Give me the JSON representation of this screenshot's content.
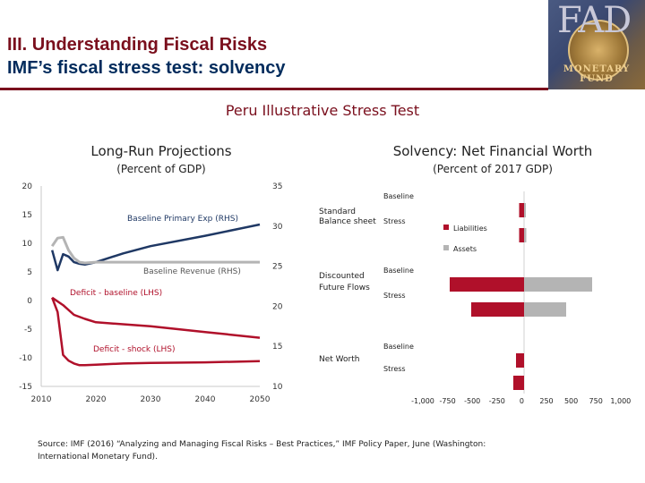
{
  "header": {
    "title": "III. Understanding Fiscal Risks",
    "subtitle": "IMF’s fiscal stress test: solvency",
    "logo_text": "FAD",
    "logo_band": "MONETARY FUND"
  },
  "main_title": "Peru Illustrative Stress Test",
  "left_chart": {
    "title": "Long-Run Projections",
    "subtitle": "(Percent of GDP)"
  },
  "right_chart": {
    "title": "Solvency: Net Financial Worth",
    "subtitle": "(Percent of 2017 GDP)"
  },
  "source": "Source: IMF (2016) “Analyzing and Managing Fiscal Risks – Best Practices,” IMF Policy Paper, June (Washington: International Monetary Fund).",
  "colors": {
    "title_red": "#7a0f1d",
    "title_blue": "#002b5c",
    "deficit_red": "#b0102a",
    "navy": "#1f3864",
    "gray": "#b4b4b4"
  },
  "chart_data": [
    {
      "type": "line",
      "x_ticks": [
        "2010",
        "2020",
        "2030",
        "2040",
        "2050"
      ],
      "xlim": [
        2010,
        2050
      ],
      "ylim_left": [
        -15,
        20
      ],
      "ylim_right": [
        10,
        35
      ],
      "yticks_left": [
        "20",
        "15",
        "10",
        "5",
        "0",
        "-5",
        "-10",
        "-15"
      ],
      "yticks_right": [
        "35",
        "30",
        "25",
        "20",
        "15",
        "10"
      ],
      "series": [
        {
          "name": "Baseline Primary Exp (RHS)",
          "axis": "right",
          "color": "#1f3864",
          "x": [
            2012,
            2013,
            2014,
            2015,
            2016,
            2017,
            2018,
            2020,
            2025,
            2030,
            2040,
            2050
          ],
          "y": [
            27.0,
            24.5,
            26.5,
            26.2,
            25.5,
            25.3,
            25.2,
            25.5,
            26.6,
            27.5,
            28.8,
            30.2
          ]
        },
        {
          "name": "Baseline Revenue (RHS)",
          "axis": "right",
          "color": "#b4b4b4",
          "x": [
            2012,
            2013,
            2014,
            2015,
            2016,
            2017,
            2018,
            2020,
            2025,
            2030,
            2040,
            2050
          ],
          "y": [
            27.5,
            28.5,
            28.6,
            27.0,
            26.0,
            25.5,
            25.4,
            25.5,
            25.5,
            25.5,
            25.5,
            25.5
          ]
        },
        {
          "name": "Deficit - baseline (LHS)",
          "axis": "left",
          "color": "#b0102a",
          "x": [
            2012,
            2014,
            2016,
            2018,
            2020,
            2030,
            2040,
            2050
          ],
          "y": [
            0.5,
            -0.8,
            -2.5,
            -3.2,
            -3.8,
            -4.5,
            -5.5,
            -6.5
          ]
        },
        {
          "name": "Deficit - shock (LHS)",
          "axis": "left",
          "color": "#b0102a",
          "x": [
            2012,
            2013,
            2014,
            2015,
            2016,
            2017,
            2018,
            2020,
            2025,
            2030,
            2040,
            2050
          ],
          "y": [
            0.5,
            -2.0,
            -9.5,
            -10.5,
            -11.0,
            -11.3,
            -11.3,
            -11.2,
            -11.0,
            -10.9,
            -10.8,
            -10.6
          ]
        }
      ],
      "annotations": [
        "Baseline Primary Exp (RHS)",
        "Baseline Revenue (RHS)",
        "Deficit - baseline (LHS)",
        "Deficit - shock (LHS)"
      ]
    },
    {
      "type": "bar",
      "orientation": "horizontal",
      "xlim": [
        -1000,
        1000
      ],
      "x_ticks": [
        "-1,000",
        "-750",
        "-500",
        "-250",
        "0",
        "250",
        "500",
        "750",
        "1,000"
      ],
      "groups": [
        {
          "label": "Standard Balance sheet",
          "rows": [
            {
              "label": "Baseline",
              "liabilities": -55,
              "assets": 20
            },
            {
              "label": "Stress",
              "liabilities": -55,
              "assets": 25
            }
          ]
        },
        {
          "label": "Discounted Future Flows",
          "rows": [
            {
              "label": "Baseline",
              "liabilities": -830,
              "assets": 760
            },
            {
              "label": "Stress",
              "liabilities": -590,
              "assets": 470
            }
          ]
        },
        {
          "label": "Net Worth",
          "rows": [
            {
              "label": "Baseline",
              "liabilities": -90,
              "assets": 0
            },
            {
              "label": "Stress",
              "liabilities": -120,
              "assets": 0
            }
          ]
        }
      ],
      "legend": [
        "Liabilities",
        "Assets"
      ],
      "legend_position": "right"
    }
  ]
}
